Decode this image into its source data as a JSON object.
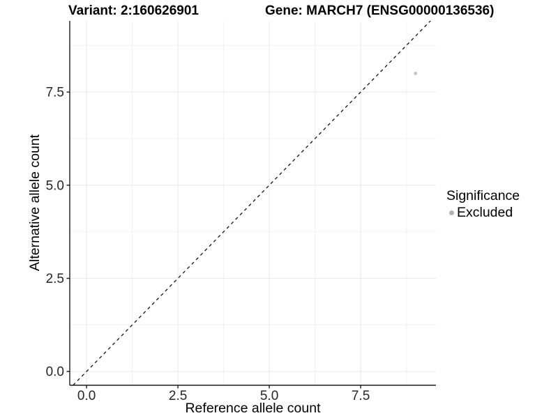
{
  "chart_data": {
    "type": "scatter",
    "titles": {
      "left": "Variant: 2:160626901",
      "right": "Gene: MARCH7 (ENSG00000136536)"
    },
    "xlabel": "Reference allele count",
    "ylabel": "Alternative allele count",
    "xlim": [
      -0.46,
      9.56
    ],
    "ylim": [
      -0.37,
      9.41
    ],
    "x_major_ticks": [
      0,
      2.5,
      5,
      7.5
    ],
    "x_tick_labels": [
      "0.0",
      "2.5",
      "5.0",
      "7.5"
    ],
    "x_minor_ticks": [
      1.25,
      3.75,
      6.25,
      8.75
    ],
    "y_major_ticks": [
      0,
      2.5,
      5,
      7.5
    ],
    "y_tick_labels": [
      "0.0",
      "2.5",
      "5.0",
      "7.5"
    ],
    "y_minor_ticks": [
      1.25,
      3.75,
      6.25,
      8.75
    ],
    "grid": "major and minor gridlines on white background",
    "identity_line": {
      "equation": "y = x",
      "style": "dashed",
      "color": "#111111"
    },
    "series": [
      {
        "name": "Excluded",
        "color": "#c2c2c2",
        "point_radius": 2.4,
        "points": [
          {
            "x": 9,
            "y": 8
          }
        ]
      }
    ],
    "legend": {
      "title": "Significance",
      "position": "right",
      "items": [
        {
          "label": "Excluded",
          "color": "#b3b3b3"
        }
      ]
    }
  },
  "colors": {
    "background": "#ffffff",
    "grid_major": "#e8e8e8",
    "grid_minor": "#f2f2f2",
    "axis": "#1a1a1a",
    "point": "#c2c2c2",
    "legend_key": "#b3b3b3"
  }
}
